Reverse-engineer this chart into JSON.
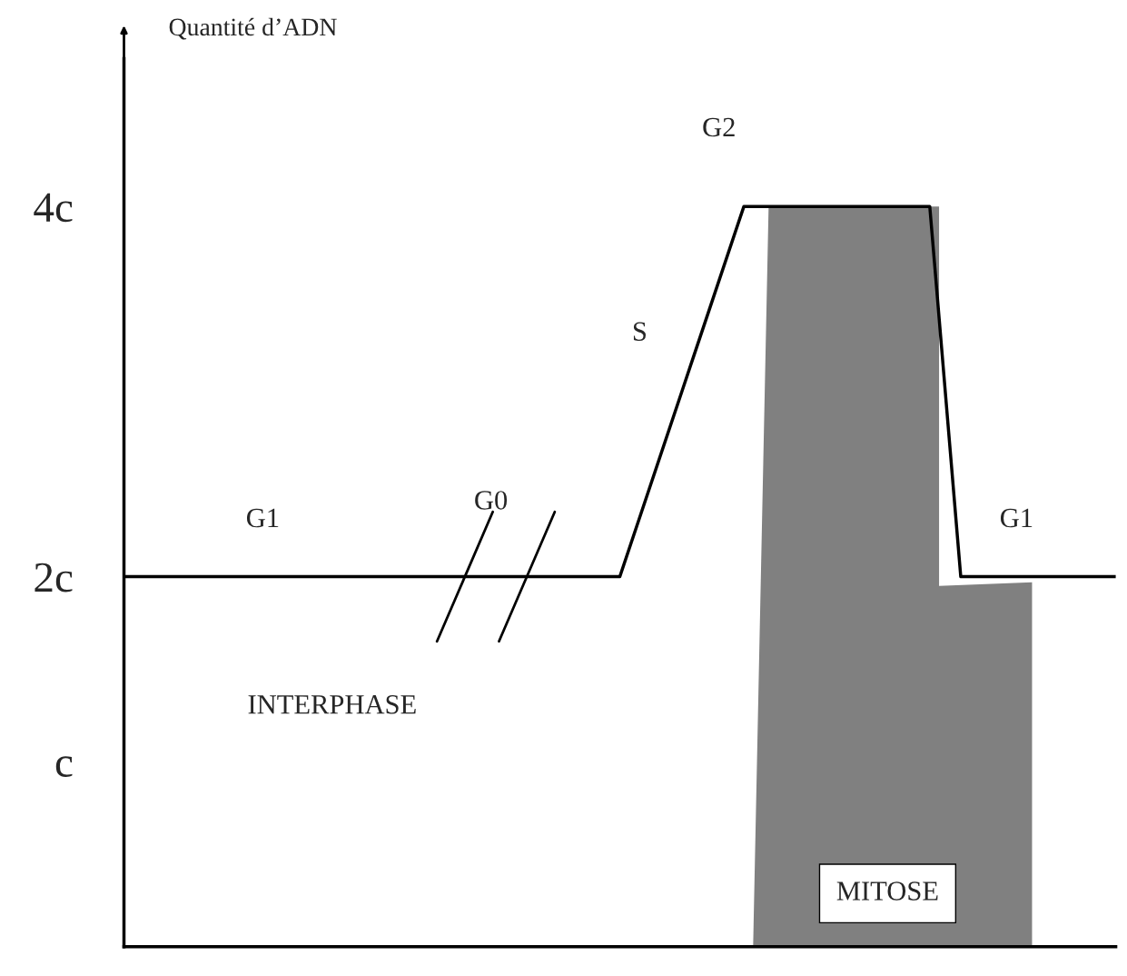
{
  "chart_data": {
    "type": "line",
    "ylabel": "Quantité d’ADN",
    "categories": [
      null,
      null,
      null,
      null,
      null,
      null,
      null,
      null,
      null,
      null,
      null,
      null,
      null,
      null,
      null,
      null,
      null,
      null,
      null,
      null,
      null,
      null,
      null,
      null,
      null,
      null,
      null,
      null,
      null,
      null,
      null,
      null,
      null
    ],
    "ylim": [
      0,
      4.8
    ],
    "yticks": [
      {
        "value": 1,
        "label": "c"
      },
      {
        "value": 2,
        "label": "2c"
      },
      {
        "value": 4,
        "label": "4c"
      }
    ],
    "tick_labels": "y",
    "grid": false,
    "legend": false,
    "series": [
      {
        "color": "#000000",
        "values": [
          2,
          2,
          2,
          2,
          2,
          2,
          2,
          2,
          2,
          2,
          2,
          2,
          2,
          2,
          2,
          2,
          2,
          2.5,
          3,
          3.5,
          4,
          4,
          4,
          4,
          4,
          4,
          4,
          2,
          2,
          2,
          2,
          2,
          2
        ]
      }
    ],
    "annotations": [
      "G1",
      "G0",
      "S",
      "G2",
      "G1",
      "INTERPHASE",
      "MITOSE"
    ]
  }
}
